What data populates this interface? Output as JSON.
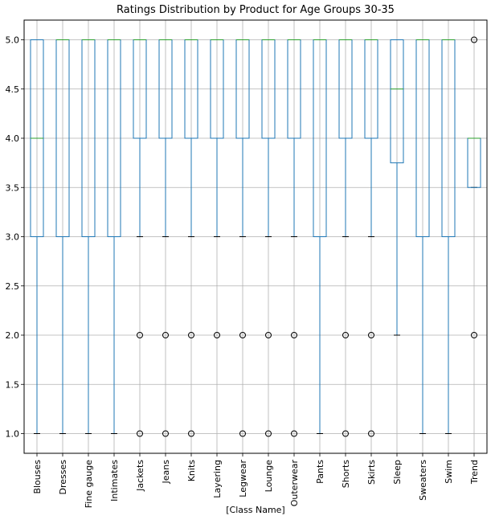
{
  "chart_data": {
    "type": "boxplot",
    "title": "Ratings Distribution by Product for Age Groups 30-35",
    "xlabel": "[Class Name]",
    "ylabel": "",
    "ylim": [
      0.8,
      5.2
    ],
    "yticks": [
      "1.0",
      "1.5",
      "2.0",
      "2.5",
      "3.0",
      "3.5",
      "4.0",
      "4.5",
      "5.0"
    ],
    "grid": true,
    "colors": {
      "box": "#1f77b4",
      "median": "#2ca02c",
      "whisker": "#1f77b4",
      "cap": "#000000",
      "grid": "#b0b0b0"
    },
    "categories": [
      "Blouses",
      "Dresses",
      "Fine gauge",
      "Intimates",
      "Jackets",
      "Jeans",
      "Knits",
      "Layering",
      "Legwear",
      "Lounge",
      "Outerwear",
      "Pants",
      "Shorts",
      "Skirts",
      "Sleep",
      "Sweaters",
      "Swim",
      "Trend"
    ],
    "boxes": [
      {
        "name": "Blouses",
        "whislo": 1,
        "q1": 3,
        "med": 4,
        "q3": 5,
        "whishi": 5,
        "fliers": []
      },
      {
        "name": "Dresses",
        "whislo": 1,
        "q1": 3,
        "med": 5,
        "q3": 5,
        "whishi": 5,
        "fliers": []
      },
      {
        "name": "Fine gauge",
        "whislo": 1,
        "q1": 3,
        "med": 5,
        "q3": 5,
        "whishi": 5,
        "fliers": []
      },
      {
        "name": "Intimates",
        "whislo": 1,
        "q1": 3,
        "med": 5,
        "q3": 5,
        "whishi": 5,
        "fliers": []
      },
      {
        "name": "Jackets",
        "whislo": 3,
        "q1": 4,
        "med": 5,
        "q3": 5,
        "whishi": 5,
        "fliers": [
          2,
          1
        ]
      },
      {
        "name": "Jeans",
        "whislo": 3,
        "q1": 4,
        "med": 5,
        "q3": 5,
        "whishi": 5,
        "fliers": [
          2,
          1
        ]
      },
      {
        "name": "Knits",
        "whislo": 3,
        "q1": 4,
        "med": 5,
        "q3": 5,
        "whishi": 5,
        "fliers": [
          2,
          1
        ]
      },
      {
        "name": "Layering",
        "whislo": 3,
        "q1": 4,
        "med": 5,
        "q3": 5,
        "whishi": 5,
        "fliers": [
          2
        ]
      },
      {
        "name": "Legwear",
        "whislo": 3,
        "q1": 4,
        "med": 5,
        "q3": 5,
        "whishi": 5,
        "fliers": [
          2,
          1
        ]
      },
      {
        "name": "Lounge",
        "whislo": 3,
        "q1": 4,
        "med": 5,
        "q3": 5,
        "whishi": 5,
        "fliers": [
          2,
          1
        ]
      },
      {
        "name": "Outerwear",
        "whislo": 3,
        "q1": 4,
        "med": 5,
        "q3": 5,
        "whishi": 5,
        "fliers": [
          2,
          1
        ]
      },
      {
        "name": "Pants",
        "whislo": 1,
        "q1": 3,
        "med": 5,
        "q3": 5,
        "whishi": 5,
        "fliers": []
      },
      {
        "name": "Shorts",
        "whislo": 3,
        "q1": 4,
        "med": 5,
        "q3": 5,
        "whishi": 5,
        "fliers": [
          2,
          1
        ]
      },
      {
        "name": "Skirts",
        "whislo": 3,
        "q1": 4,
        "med": 5,
        "q3": 5,
        "whishi": 5,
        "fliers": [
          2,
          1
        ]
      },
      {
        "name": "Sleep",
        "whislo": 2,
        "q1": 3.75,
        "med": 4.5,
        "q3": 5,
        "whishi": 5,
        "fliers": []
      },
      {
        "name": "Sweaters",
        "whislo": 1,
        "q1": 3,
        "med": 5,
        "q3": 5,
        "whishi": 5,
        "fliers": []
      },
      {
        "name": "Swim",
        "whislo": 1,
        "q1": 3,
        "med": 5,
        "q3": 5,
        "whishi": 5,
        "fliers": []
      },
      {
        "name": "Trend",
        "whislo": 3.5,
        "q1": 3.5,
        "med": 4,
        "q3": 4,
        "whishi": 4,
        "fliers": [
          5,
          2
        ]
      }
    ]
  }
}
